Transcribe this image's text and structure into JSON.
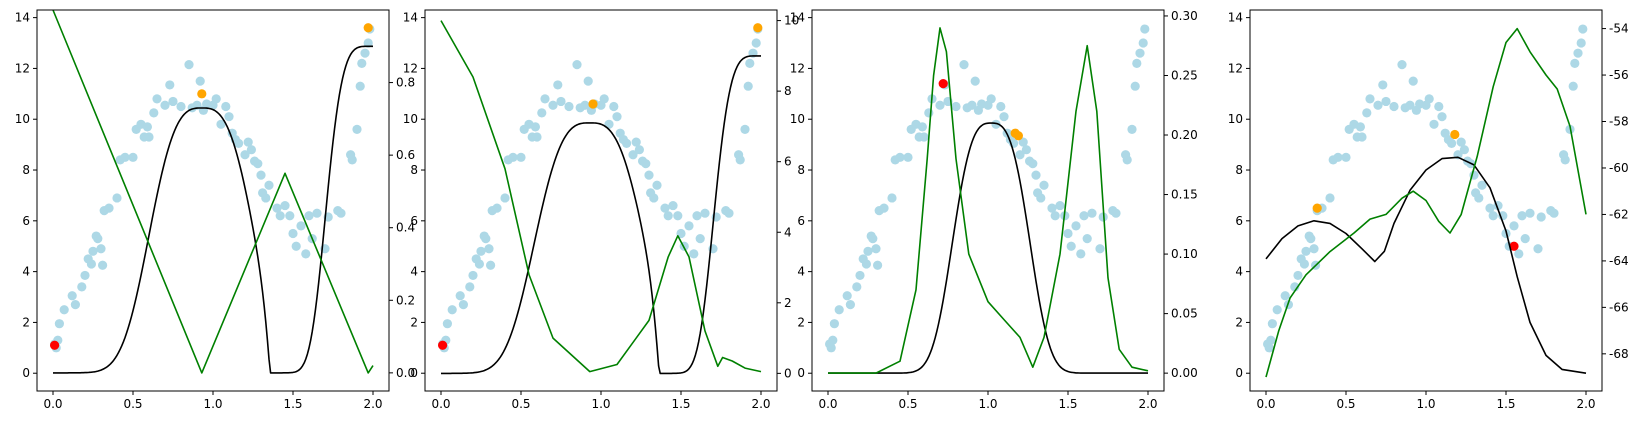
{
  "chart_data": [
    {
      "type": "scatter",
      "title": "",
      "xlabel": "",
      "ylabel": "",
      "y2label": "",
      "xlim": [
        -0.1,
        2.1
      ],
      "ylim": [
        -0.7,
        14.3
      ],
      "y2lim": [
        -0.05,
        1.0
      ],
      "xticks": [
        "0.0",
        "0.5",
        "1.0",
        "1.5",
        "2.0"
      ],
      "yticks": [
        "0",
        "2",
        "4",
        "6",
        "8",
        "10",
        "12",
        "14"
      ],
      "y2ticks": [
        "0.0",
        "0.2",
        "0.4",
        "0.6",
        "0.8"
      ],
      "red_point": [
        0.01,
        1.1
      ],
      "orange_points": [
        [
          0.93,
          11.0
        ],
        [
          1.97,
          13.6
        ]
      ],
      "series": [
        {
          "type": "line",
          "axis": "right",
          "color": "#000000",
          "kind": "gaussian",
          "a": 0.73,
          "mu": 0.93,
          "sigma": 0.38,
          "p": 3,
          "dip": {
            "x": 1.45,
            "sigma": 0.09,
            "depth": 0.52
          },
          "rise": {
            "a": 0.9,
            "mu": 1.98,
            "sigma": 0.3,
            "p": 4
          }
        },
        {
          "type": "line",
          "axis": "right",
          "color": "#008000",
          "points": [
            [
              0.0,
              1.0
            ],
            [
              0.93,
              0.0
            ],
            [
              1.45,
              0.55
            ],
            [
              1.97,
              0.0
            ],
            [
              2.0,
              0.02
            ]
          ]
        }
      ]
    },
    {
      "type": "scatter",
      "title": "",
      "xlabel": "",
      "ylabel": "",
      "y2label": "",
      "xlim": [
        -0.1,
        2.1
      ],
      "ylim": [
        -0.7,
        14.3
      ],
      "y2lim": [
        -0.5,
        10.3
      ],
      "xticks": [
        "0.0",
        "0.5",
        "1.0",
        "1.5",
        "2.0"
      ],
      "yticks": [
        "0",
        "2",
        "4",
        "6",
        "8",
        "10",
        "12",
        "14"
      ],
      "y2ticks": [
        "0",
        "2",
        "4",
        "6",
        "8",
        "10"
      ],
      "red_point": [
        0.01,
        1.1
      ],
      "orange_points": [
        [
          0.95,
          10.6
        ],
        [
          1.98,
          13.6
        ]
      ],
      "series": [
        {
          "type": "line",
          "axis": "right",
          "color": "#000000",
          "kind": "gaussian",
          "a": 7.1,
          "mu": 0.93,
          "sigma": 0.4,
          "p": 3,
          "dip": {
            "x": 1.45,
            "sigma": 0.09,
            "depth": 5.0
          },
          "rise": {
            "a": 9.0,
            "mu": 1.98,
            "sigma": 0.3,
            "p": 4
          }
        },
        {
          "type": "line",
          "axis": "right",
          "color": "#008000",
          "points": [
            [
              0.0,
              10.0
            ],
            [
              0.2,
              8.4
            ],
            [
              0.4,
              5.8
            ],
            [
              0.55,
              2.8
            ],
            [
              0.7,
              1.0
            ],
            [
              0.93,
              0.05
            ],
            [
              1.1,
              0.25
            ],
            [
              1.3,
              1.5
            ],
            [
              1.42,
              3.3
            ],
            [
              1.48,
              3.9
            ],
            [
              1.55,
              3.3
            ],
            [
              1.65,
              1.2
            ],
            [
              1.73,
              0.2
            ],
            [
              1.76,
              0.45
            ],
            [
              1.82,
              0.35
            ],
            [
              1.9,
              0.15
            ],
            [
              2.0,
              0.05
            ]
          ]
        }
      ]
    },
    {
      "type": "scatter",
      "title": "",
      "xlabel": "",
      "ylabel": "",
      "y2label": "",
      "xlim": [
        -0.1,
        2.1
      ],
      "ylim": [
        -0.7,
        14.3
      ],
      "y2lim": [
        -0.015,
        0.305
      ],
      "xticks": [
        "0.0",
        "0.5",
        "1.0",
        "1.5",
        "2.0"
      ],
      "yticks": [
        "0",
        "2",
        "4",
        "6",
        "8",
        "10",
        "12",
        "14"
      ],
      "y2ticks": [
        "0.00",
        "0.05",
        "0.10",
        "0.15",
        "0.20",
        "0.25",
        "0.30"
      ],
      "red_point": [
        0.72,
        11.4
      ],
      "orange_points": [
        [
          1.17,
          9.45
        ],
        [
          1.19,
          9.35
        ]
      ],
      "series": [
        {
          "type": "line",
          "axis": "right",
          "color": "#000000",
          "kind": "gaussian",
          "a": 0.21,
          "mu": 1.02,
          "sigma": 0.28,
          "p": 3
        },
        {
          "type": "line",
          "axis": "right",
          "color": "#008000",
          "points": [
            [
              0.0,
              0.0
            ],
            [
              0.3,
              0.0
            ],
            [
              0.45,
              0.01
            ],
            [
              0.55,
              0.07
            ],
            [
              0.62,
              0.18
            ],
            [
              0.66,
              0.25
            ],
            [
              0.7,
              0.29
            ],
            [
              0.74,
              0.27
            ],
            [
              0.8,
              0.18
            ],
            [
              0.88,
              0.1
            ],
            [
              1.0,
              0.06
            ],
            [
              1.1,
              0.045
            ],
            [
              1.2,
              0.03
            ],
            [
              1.28,
              0.005
            ],
            [
              1.35,
              0.03
            ],
            [
              1.45,
              0.1
            ],
            [
              1.55,
              0.22
            ],
            [
              1.62,
              0.275
            ],
            [
              1.68,
              0.22
            ],
            [
              1.75,
              0.08
            ],
            [
              1.82,
              0.02
            ],
            [
              1.9,
              0.005
            ],
            [
              2.0,
              0.002
            ]
          ]
        }
      ]
    },
    {
      "type": "scatter",
      "title": "",
      "xlabel": "",
      "ylabel": "",
      "y2label": "",
      "xlim": [
        -0.1,
        2.1
      ],
      "ylim": [
        -0.7,
        14.3
      ],
      "y2lim": [
        -69.6,
        -53.2
      ],
      "xticks": [
        "0.0",
        "0.5",
        "1.0",
        "1.5",
        "2.0"
      ],
      "yticks": [
        "0",
        "2",
        "4",
        "6",
        "8",
        "10",
        "12",
        "14"
      ],
      "y2ticks": [
        "-68",
        "-66",
        "-64",
        "-62",
        "-60",
        "-58",
        "-56",
        "-54"
      ],
      "red_point": [
        1.55,
        5.0
      ],
      "orange_points": [
        [
          0.32,
          6.5
        ],
        [
          1.18,
          9.4
        ]
      ],
      "series": [
        {
          "type": "line",
          "axis": "left",
          "color": "#000000",
          "points": [
            [
              0.0,
              4.5
            ],
            [
              0.1,
              5.3
            ],
            [
              0.2,
              5.8
            ],
            [
              0.3,
              6.0
            ],
            [
              0.4,
              5.9
            ],
            [
              0.5,
              5.5
            ],
            [
              0.6,
              4.9
            ],
            [
              0.68,
              4.4
            ],
            [
              0.74,
              4.8
            ],
            [
              0.8,
              5.9
            ],
            [
              0.9,
              7.2
            ],
            [
              1.0,
              8.0
            ],
            [
              1.1,
              8.45
            ],
            [
              1.2,
              8.5
            ],
            [
              1.3,
              8.2
            ],
            [
              1.4,
              7.3
            ],
            [
              1.5,
              5.6
            ],
            [
              1.57,
              3.8
            ],
            [
              1.65,
              2.0
            ],
            [
              1.75,
              0.7
            ],
            [
              1.85,
              0.15
            ],
            [
              2.0,
              0.0
            ]
          ]
        },
        {
          "type": "line",
          "axis": "right",
          "color": "#008000",
          "points": [
            [
              0.0,
              -69.0
            ],
            [
              0.08,
              -67.0
            ],
            [
              0.15,
              -65.6
            ],
            [
              0.25,
              -64.6
            ],
            [
              0.4,
              -63.6
            ],
            [
              0.55,
              -62.8
            ],
            [
              0.65,
              -62.2
            ],
            [
              0.75,
              -62.0
            ],
            [
              0.85,
              -61.3
            ],
            [
              0.92,
              -61.0
            ],
            [
              1.0,
              -61.4
            ],
            [
              1.08,
              -62.3
            ],
            [
              1.15,
              -62.8
            ],
            [
              1.22,
              -62.0
            ],
            [
              1.32,
              -59.5
            ],
            [
              1.42,
              -56.5
            ],
            [
              1.5,
              -54.6
            ],
            [
              1.57,
              -54.0
            ],
            [
              1.65,
              -55.0
            ],
            [
              1.75,
              -56.0
            ],
            [
              1.82,
              -56.6
            ],
            [
              1.9,
              -58.2
            ],
            [
              2.0,
              -62.0
            ]
          ]
        }
      ]
    }
  ],
  "scatter_points": [
    [
      0.01,
      1.15
    ],
    [
      0.02,
      1.0
    ],
    [
      0.03,
      1.3
    ],
    [
      0.04,
      1.95
    ],
    [
      0.07,
      2.5
    ],
    [
      0.12,
      3.05
    ],
    [
      0.14,
      2.7
    ],
    [
      0.18,
      3.4
    ],
    [
      0.2,
      3.85
    ],
    [
      0.22,
      4.5
    ],
    [
      0.24,
      4.3
    ],
    [
      0.25,
      4.8
    ],
    [
      0.27,
      5.4
    ],
    [
      0.28,
      5.3
    ],
    [
      0.3,
      4.9
    ],
    [
      0.31,
      4.25
    ],
    [
      0.32,
      6.4
    ],
    [
      0.35,
      6.5
    ],
    [
      0.4,
      6.9
    ],
    [
      0.42,
      8.4
    ],
    [
      0.45,
      8.5
    ],
    [
      0.5,
      8.5
    ],
    [
      0.52,
      9.6
    ],
    [
      0.55,
      9.8
    ],
    [
      0.57,
      9.3
    ],
    [
      0.59,
      9.7
    ],
    [
      0.6,
      9.3
    ],
    [
      0.63,
      10.25
    ],
    [
      0.65,
      10.8
    ],
    [
      0.7,
      10.55
    ],
    [
      0.73,
      11.35
    ],
    [
      0.75,
      10.7
    ],
    [
      0.8,
      10.5
    ],
    [
      0.85,
      12.15
    ],
    [
      0.87,
      10.45
    ],
    [
      0.9,
      10.55
    ],
    [
      0.92,
      11.5
    ],
    [
      0.94,
      10.35
    ],
    [
      0.96,
      10.6
    ],
    [
      1.0,
      10.55
    ],
    [
      1.02,
      10.8
    ],
    [
      1.05,
      9.8
    ],
    [
      1.08,
      10.5
    ],
    [
      1.1,
      10.1
    ],
    [
      1.12,
      9.45
    ],
    [
      1.14,
      9.2
    ],
    [
      1.16,
      9.05
    ],
    [
      1.2,
      8.6
    ],
    [
      1.22,
      9.1
    ],
    [
      1.24,
      8.8
    ],
    [
      1.26,
      8.35
    ],
    [
      1.28,
      8.25
    ],
    [
      1.3,
      7.8
    ],
    [
      1.31,
      7.1
    ],
    [
      1.33,
      6.9
    ],
    [
      1.35,
      7.4
    ],
    [
      1.4,
      6.5
    ],
    [
      1.42,
      6.2
    ],
    [
      1.45,
      6.6
    ],
    [
      1.48,
      6.2
    ],
    [
      1.5,
      5.5
    ],
    [
      1.52,
      5.0
    ],
    [
      1.55,
      5.8
    ],
    [
      1.58,
      4.7
    ],
    [
      1.6,
      6.2
    ],
    [
      1.62,
      5.3
    ],
    [
      1.65,
      6.3
    ],
    [
      1.7,
      4.9
    ],
    [
      1.72,
      6.15
    ],
    [
      1.78,
      6.4
    ],
    [
      1.8,
      6.3
    ],
    [
      1.86,
      8.6
    ],
    [
      1.87,
      8.4
    ],
    [
      1.9,
      9.6
    ],
    [
      1.92,
      11.3
    ],
    [
      1.93,
      12.2
    ],
    [
      1.95,
      12.6
    ],
    [
      1.97,
      13.0
    ],
    [
      1.98,
      13.55
    ]
  ]
}
